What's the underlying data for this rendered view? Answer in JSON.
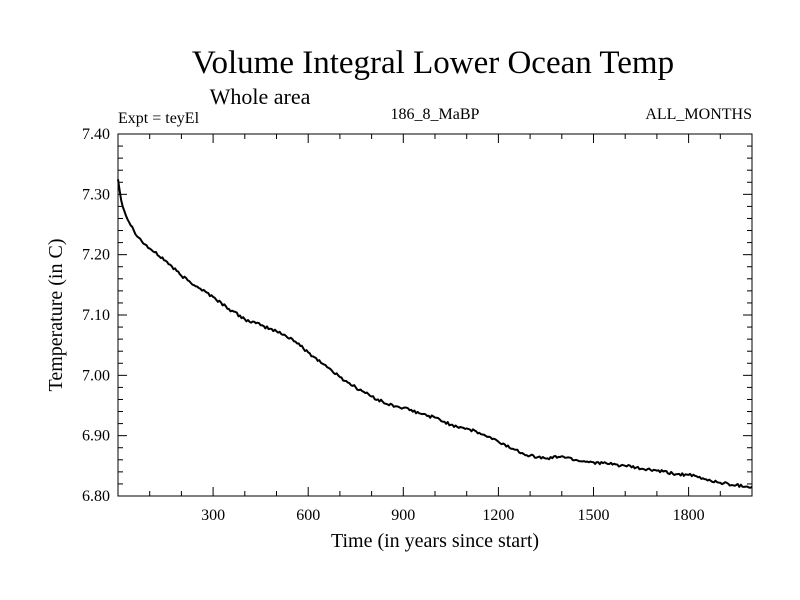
{
  "chart_data": {
    "type": "line",
    "title": "Volume Integral Lower Ocean Temp",
    "subtitle": "Whole area",
    "left_label": "Expt = teyEl",
    "center_label": "186_8_MaBP",
    "right_label": "ALL_MONTHS",
    "xlabel": "Time (in years since start)",
    "ylabel": "Temperature (in C)",
    "xlim": [
      0,
      2000
    ],
    "ylim": [
      6.8,
      7.4
    ],
    "x_ticks": [
      300,
      600,
      900,
      1200,
      1500,
      1800
    ],
    "x_tick_labels": [
      "300",
      "600",
      "900",
      "1200",
      "1500",
      "1800"
    ],
    "y_ticks": [
      6.8,
      6.9,
      7.0,
      7.1,
      7.2,
      7.3,
      7.4
    ],
    "y_tick_labels": [
      "6.80",
      "6.90",
      "7.00",
      "7.10",
      "7.20",
      "7.30",
      "7.40"
    ],
    "grid": false,
    "line_color": "#000000",
    "series": [
      {
        "name": "Temperature",
        "x": [
          0,
          10,
          25,
          50,
          75,
          100,
          150,
          200,
          250,
          300,
          350,
          400,
          450,
          500,
          550,
          600,
          650,
          700,
          750,
          800,
          850,
          900,
          950,
          1000,
          1050,
          1100,
          1150,
          1200,
          1250,
          1300,
          1350,
          1400,
          1450,
          1500,
          1550,
          1600,
          1650,
          1700,
          1750,
          1800,
          1850,
          1900,
          1950,
          2000
        ],
        "values": [
          7.325,
          7.29,
          7.265,
          7.24,
          7.222,
          7.21,
          7.19,
          7.165,
          7.147,
          7.13,
          7.11,
          7.093,
          7.083,
          7.073,
          7.06,
          7.038,
          7.018,
          6.997,
          6.98,
          6.965,
          6.952,
          6.946,
          6.937,
          6.93,
          6.918,
          6.912,
          6.902,
          6.89,
          6.877,
          6.867,
          6.862,
          6.866,
          6.859,
          6.856,
          6.853,
          6.85,
          6.845,
          6.842,
          6.837,
          6.835,
          6.828,
          6.822,
          6.818,
          6.815
        ]
      }
    ]
  }
}
